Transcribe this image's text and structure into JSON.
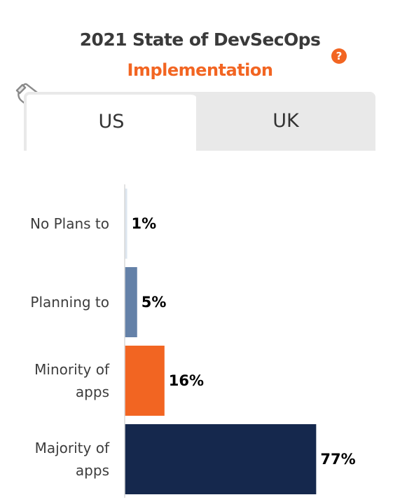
{
  "header": {
    "title": "2021 State of DevSecOps",
    "subtitle": "Implementation",
    "subtitle_color": "#f26522",
    "help_symbol": "?",
    "help_color": "#f26522",
    "hand_icon": "pointing-hand-icon"
  },
  "tabs": [
    {
      "label": "US",
      "active": true
    },
    {
      "label": "UK",
      "active": false
    }
  ],
  "chart_data": {
    "type": "bar",
    "orientation": "horizontal",
    "categories": [
      [
        "No Plans to"
      ],
      [
        "Planning to"
      ],
      [
        "Minority of",
        "apps"
      ],
      [
        "Majority of",
        "apps"
      ]
    ],
    "values": [
      1,
      5,
      16,
      77
    ],
    "value_labels": [
      "1%",
      "5%",
      "16%",
      "77%"
    ],
    "colors": [
      "#dde6ef",
      "#6481a8",
      "#f26522",
      "#15284d"
    ],
    "grid": false,
    "legend": "none"
  }
}
